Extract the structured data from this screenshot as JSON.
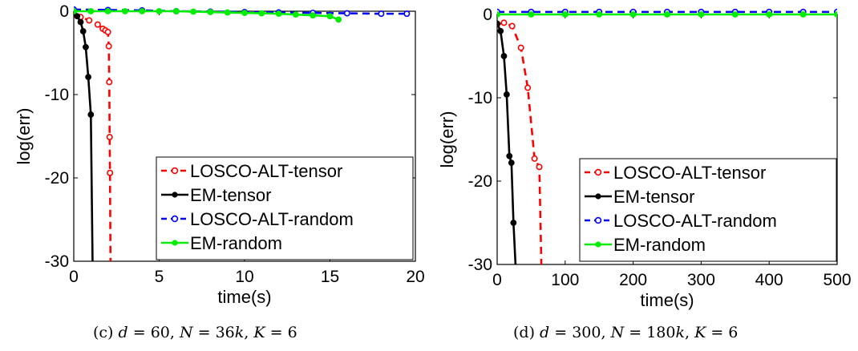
{
  "chart_data": [
    {
      "type": "line",
      "panel": "c",
      "xlabel": "time(s)",
      "ylabel": "log(err)",
      "xlim": [
        0,
        20
      ],
      "ylim": [
        -30,
        0
      ],
      "xticks": [
        0,
        5,
        10,
        15,
        20
      ],
      "yticks": [
        0,
        -10,
        -20,
        -30
      ],
      "grid": false,
      "legend": "bottom-right",
      "caption": {
        "label": "(c)",
        "d": "60",
        "N": "36",
        "K": "6"
      },
      "series": [
        {
          "name": "LOSCO-ALT-tensor",
          "color": "#ff0000",
          "dash": "dashed",
          "marker": "open-circle",
          "x": [
            0.0,
            0.4,
            0.9,
            1.4,
            1.7,
            1.85,
            2.0,
            2.05,
            2.08,
            2.1,
            2.12,
            2.15
          ],
          "y": [
            -0.4,
            -0.7,
            -1.1,
            -1.6,
            -2.1,
            -2.3,
            -2.5,
            -4.2,
            -8.5,
            -15.1,
            -19.4,
            -30
          ]
        },
        {
          "name": "EM-tensor",
          "color": "#000000",
          "dash": "solid",
          "marker": "filled-circle",
          "x": [
            0.0,
            0.2,
            0.4,
            0.55,
            0.7,
            0.85,
            1.0,
            1.1
          ],
          "y": [
            -0.3,
            -0.6,
            -1.3,
            -2.4,
            -4.3,
            -7.9,
            -12.4,
            -30
          ]
        },
        {
          "name": "LOSCO-ALT-random",
          "color": "#0000ff",
          "dash": "dashed",
          "marker": "open-circle",
          "x": [
            0.0,
            2.0,
            4.0,
            6.0,
            8.0,
            10.0,
            12.0,
            14.0,
            16.0,
            18.0,
            19.5
          ],
          "y": [
            0.2,
            0.15,
            0.1,
            0.0,
            -0.05,
            -0.1,
            -0.15,
            -0.2,
            -0.25,
            -0.3,
            -0.3
          ]
        },
        {
          "name": "EM-random",
          "color": "#00ee00",
          "dash": "solid",
          "marker": "filled-circle",
          "x": [
            0.0,
            1.0,
            2.0,
            3.0,
            4.0,
            5.0,
            6.0,
            7.0,
            8.0,
            9.0,
            10.0,
            11.0,
            12.0,
            13.0,
            14.0,
            15.0,
            15.5
          ],
          "y": [
            0.0,
            0.0,
            0.0,
            0.0,
            0.0,
            0.0,
            0.0,
            -0.05,
            -0.1,
            -0.15,
            -0.2,
            -0.25,
            -0.3,
            -0.4,
            -0.5,
            -0.6,
            -1.0
          ]
        }
      ]
    },
    {
      "type": "line",
      "panel": "d",
      "xlabel": "time(s)",
      "ylabel": "log(err)",
      "xlim": [
        0,
        500
      ],
      "ylim": [
        -30,
        0
      ],
      "xticks": [
        0,
        100,
        200,
        300,
        400,
        500
      ],
      "yticks": [
        0,
        -10,
        -20,
        -30
      ],
      "grid": false,
      "legend": "bottom-right",
      "caption": {
        "label": "(d)",
        "d": "300",
        "N": "180",
        "K": "6"
      },
      "series": [
        {
          "name": "LOSCO-ALT-tensor",
          "color": "#ff0000",
          "dash": "dashed",
          "marker": "open-circle",
          "x": [
            0,
            10,
            22,
            35,
            45,
            55,
            62,
            65
          ],
          "y": [
            -1.2,
            -1.0,
            -1.4,
            -4.0,
            -8.8,
            -17.3,
            -18.3,
            -30
          ]
        },
        {
          "name": "EM-tensor",
          "color": "#000000",
          "dash": "solid",
          "marker": "filled-circle",
          "x": [
            0,
            5,
            10,
            14,
            18,
            21,
            24,
            27
          ],
          "y": [
            -1.1,
            -2.0,
            -5.0,
            -9.6,
            -17.0,
            -17.8,
            -25.0,
            -30
          ]
        },
        {
          "name": "LOSCO-ALT-random",
          "color": "#0000ff",
          "dash": "dashed",
          "marker": "open-circle",
          "x": [
            0,
            50,
            100,
            150,
            200,
            250,
            300,
            350,
            400,
            450,
            500
          ],
          "y": [
            0.3,
            0.3,
            0.3,
            0.3,
            0.3,
            0.3,
            0.3,
            0.3,
            0.3,
            0.3,
            0.3
          ]
        },
        {
          "name": "EM-random",
          "color": "#00ee00",
          "dash": "solid",
          "marker": "filled-circle",
          "x": [
            0,
            50,
            100,
            150,
            200,
            250,
            300,
            350,
            400,
            450,
            500
          ],
          "y": [
            0.0,
            0.0,
            0.0,
            0.0,
            0.0,
            0.0,
            0.0,
            0.0,
            0.0,
            0.0,
            0.0
          ]
        }
      ]
    }
  ]
}
